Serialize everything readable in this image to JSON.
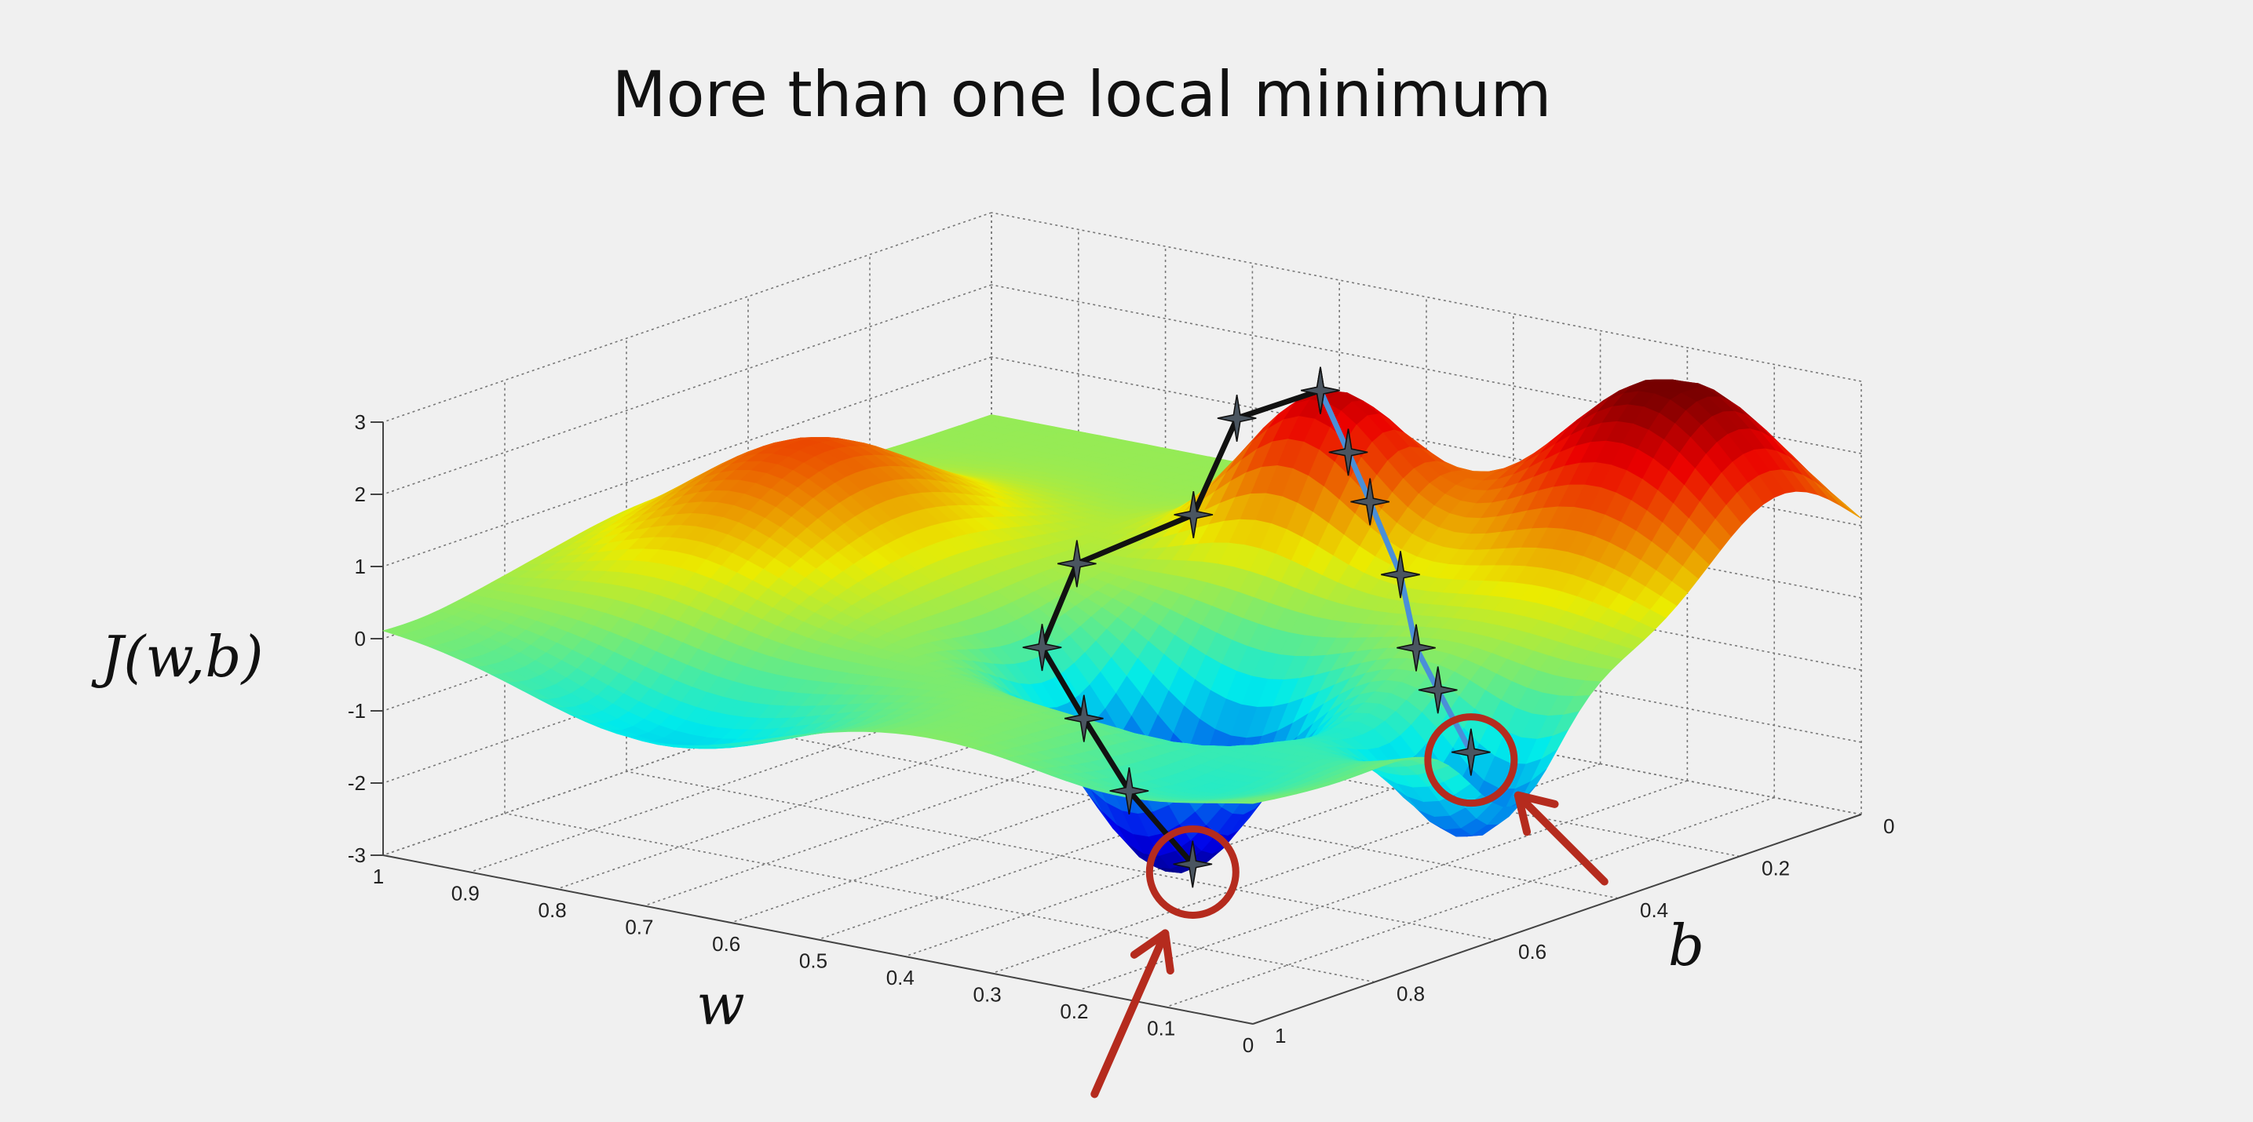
{
  "chart_data": {
    "type": "surface",
    "title": "More than one local minimum",
    "xlabel": "w",
    "ylabel": "b",
    "zlabel": "J(w,b)",
    "x_ticks": [
      "0",
      "0.1",
      "0.2",
      "0.3",
      "0.4",
      "0.5",
      "0.6",
      "0.7",
      "0.8",
      "0.9",
      "1"
    ],
    "y_ticks": [
      "0",
      "0.2",
      "0.4",
      "0.6",
      "0.8",
      "1"
    ],
    "z_ticks": [
      "-3",
      "-2",
      "-1",
      "0",
      "1",
      "2",
      "3"
    ],
    "xlim": [
      0,
      1
    ],
    "ylim": [
      0,
      1
    ],
    "zlim": [
      -3,
      3
    ],
    "grid": true,
    "colormap": "jet",
    "paths": [
      {
        "color": "#111111",
        "points": [
          {
            "w": 0.44,
            "b": 0.26,
            "J": 2.6
          },
          {
            "w": 0.55,
            "b": 0.24,
            "J": 1.9
          },
          {
            "w": 0.53,
            "b": 0.34,
            "J": 0.9
          },
          {
            "w": 0.65,
            "b": 0.36,
            "J": 0.0
          },
          {
            "w": 0.62,
            "b": 0.46,
            "J": -0.8
          },
          {
            "w": 0.53,
            "b": 0.52,
            "J": -1.4
          },
          {
            "w": 0.45,
            "b": 0.56,
            "J": -2.1
          },
          {
            "w": 0.37,
            "b": 0.57,
            "J": -2.9
          }
        ]
      },
      {
        "color": "#4a8fd8",
        "points": [
          {
            "w": 0.44,
            "b": 0.26,
            "J": 2.6
          },
          {
            "w": 0.38,
            "b": 0.3,
            "J": 2.0
          },
          {
            "w": 0.32,
            "b": 0.35,
            "J": 1.6
          },
          {
            "w": 0.25,
            "b": 0.4,
            "J": 0.9
          },
          {
            "w": 0.19,
            "b": 0.46,
            "J": 0.2
          },
          {
            "w": 0.13,
            "b": 0.51,
            "J": -0.1
          },
          {
            "w": 0.05,
            "b": 0.57,
            "J": -0.6
          }
        ]
      }
    ],
    "minima": [
      {
        "w": 0.37,
        "b": 0.57,
        "J": -2.9
      },
      {
        "w": 0.05,
        "b": 0.57,
        "J": -0.6
      }
    ],
    "annotation_color": "#b52b1e"
  }
}
